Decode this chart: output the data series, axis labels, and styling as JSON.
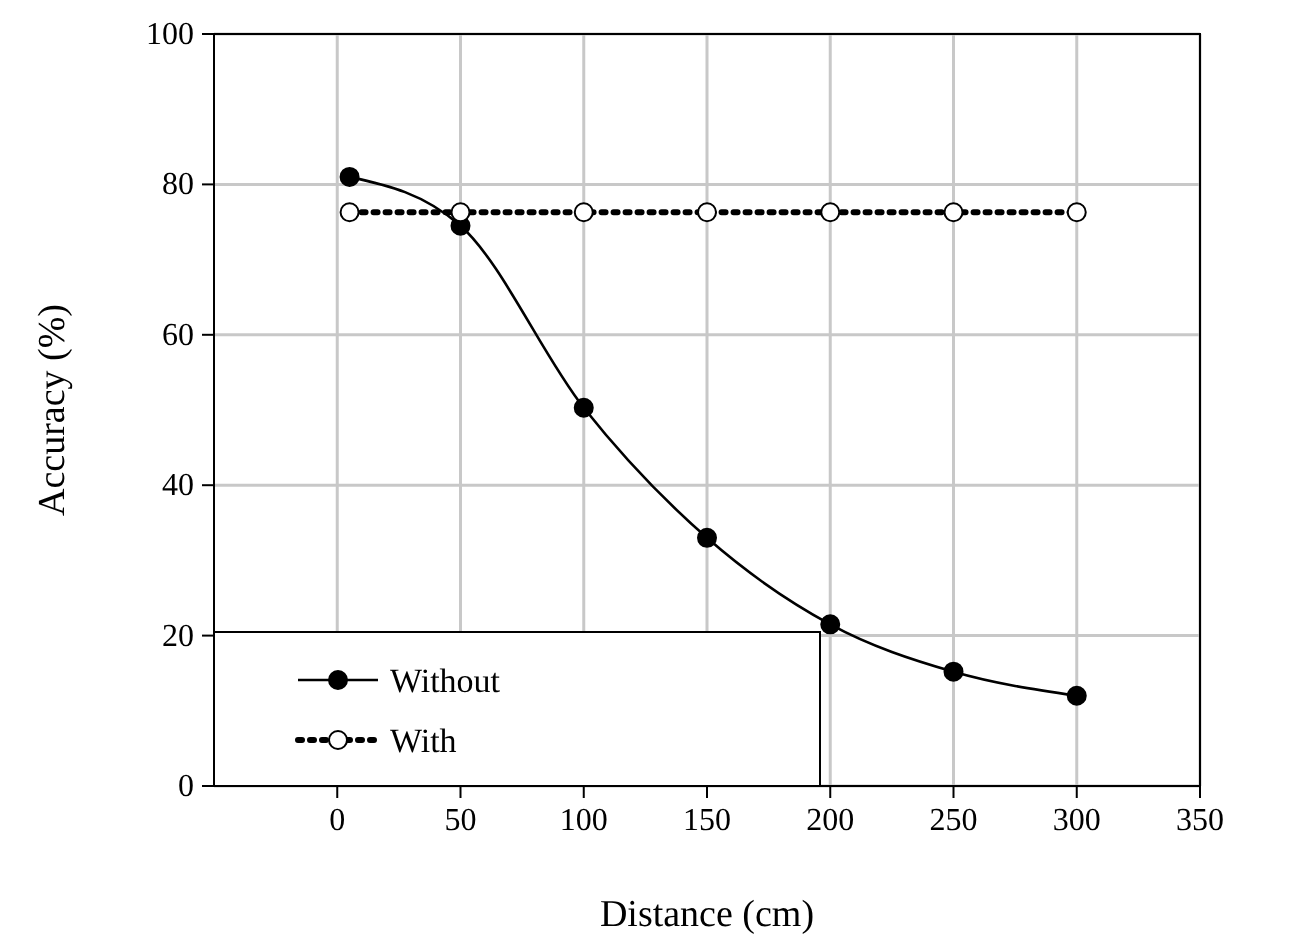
{
  "chart_data": {
    "type": "line",
    "xlabel": "Distance (cm)",
    "ylabel": "Accuracy (%)",
    "xlim": [
      -50,
      350
    ],
    "xticks": [
      0,
      50,
      100,
      150,
      200,
      250,
      300,
      350
    ],
    "ylim": [
      0,
      100
    ],
    "yticks": [
      0,
      20,
      40,
      60,
      80,
      100
    ],
    "grid": true,
    "legend": "bottom left",
    "marker": "circle",
    "series": [
      {
        "name": "Without",
        "color": "#000000",
        "line_style": "solid",
        "x": [
          5,
          50,
          100,
          150,
          200,
          250,
          300
        ],
        "values": [
          81,
          74.5,
          50.3,
          33,
          21.5,
          15.2,
          12
        ]
      },
      {
        "name": "With",
        "color": "#000000",
        "line_style": "dotted",
        "x": [
          5,
          50,
          100,
          150,
          200,
          250,
          300
        ],
        "values": [
          76.3,
          76.3,
          76.3,
          76.3,
          76.3,
          76.3,
          76.3
        ]
      }
    ]
  }
}
